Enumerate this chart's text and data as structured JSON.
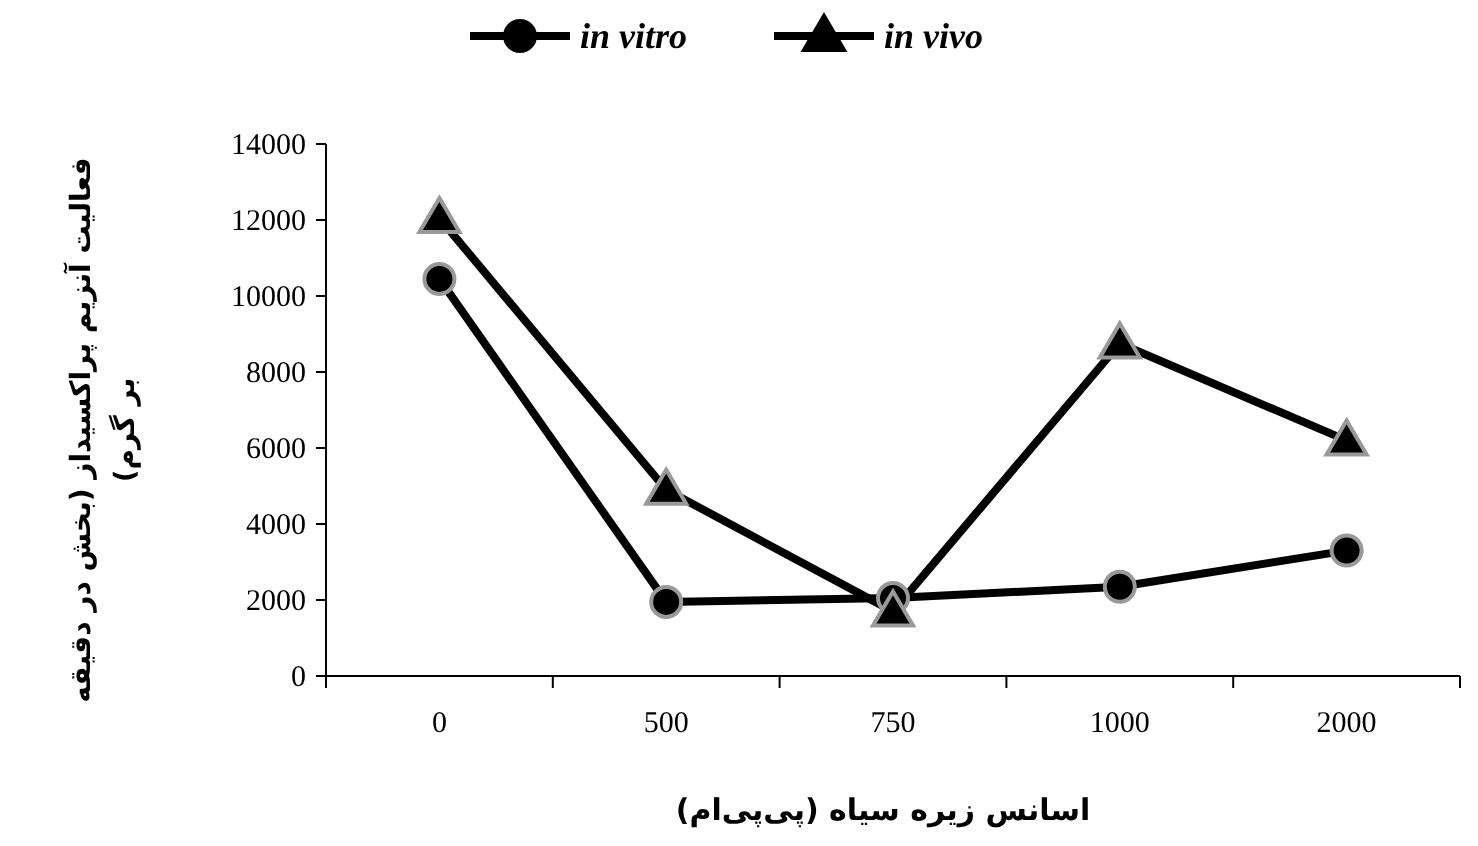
{
  "chart_data": {
    "type": "line",
    "xlabel": "اسانس زیره سیاه (پی‌پی‌ام)",
    "ylabel": "فعالیت آنزیم پراکسیداز (بخش در دقیقه بر گرم)",
    "categories": [
      "0",
      "500",
      "750",
      "1000",
      "2000"
    ],
    "series": [
      {
        "name": "in vitro",
        "color": "#000000",
        "marker": "circle",
        "values": [
          10450,
          1950,
          2050,
          2350,
          3300
        ]
      },
      {
        "name": "in vivo",
        "color": "#000000",
        "marker": "triangle",
        "values": [
          12050,
          4900,
          1700,
          8750,
          6200
        ]
      }
    ],
    "ylim": [
      0,
      14000
    ],
    "yticks": [
      0,
      2000,
      4000,
      6000,
      8000,
      10000,
      12000,
      14000
    ],
    "grid": false,
    "legend": "top",
    "line_style": "solid"
  }
}
